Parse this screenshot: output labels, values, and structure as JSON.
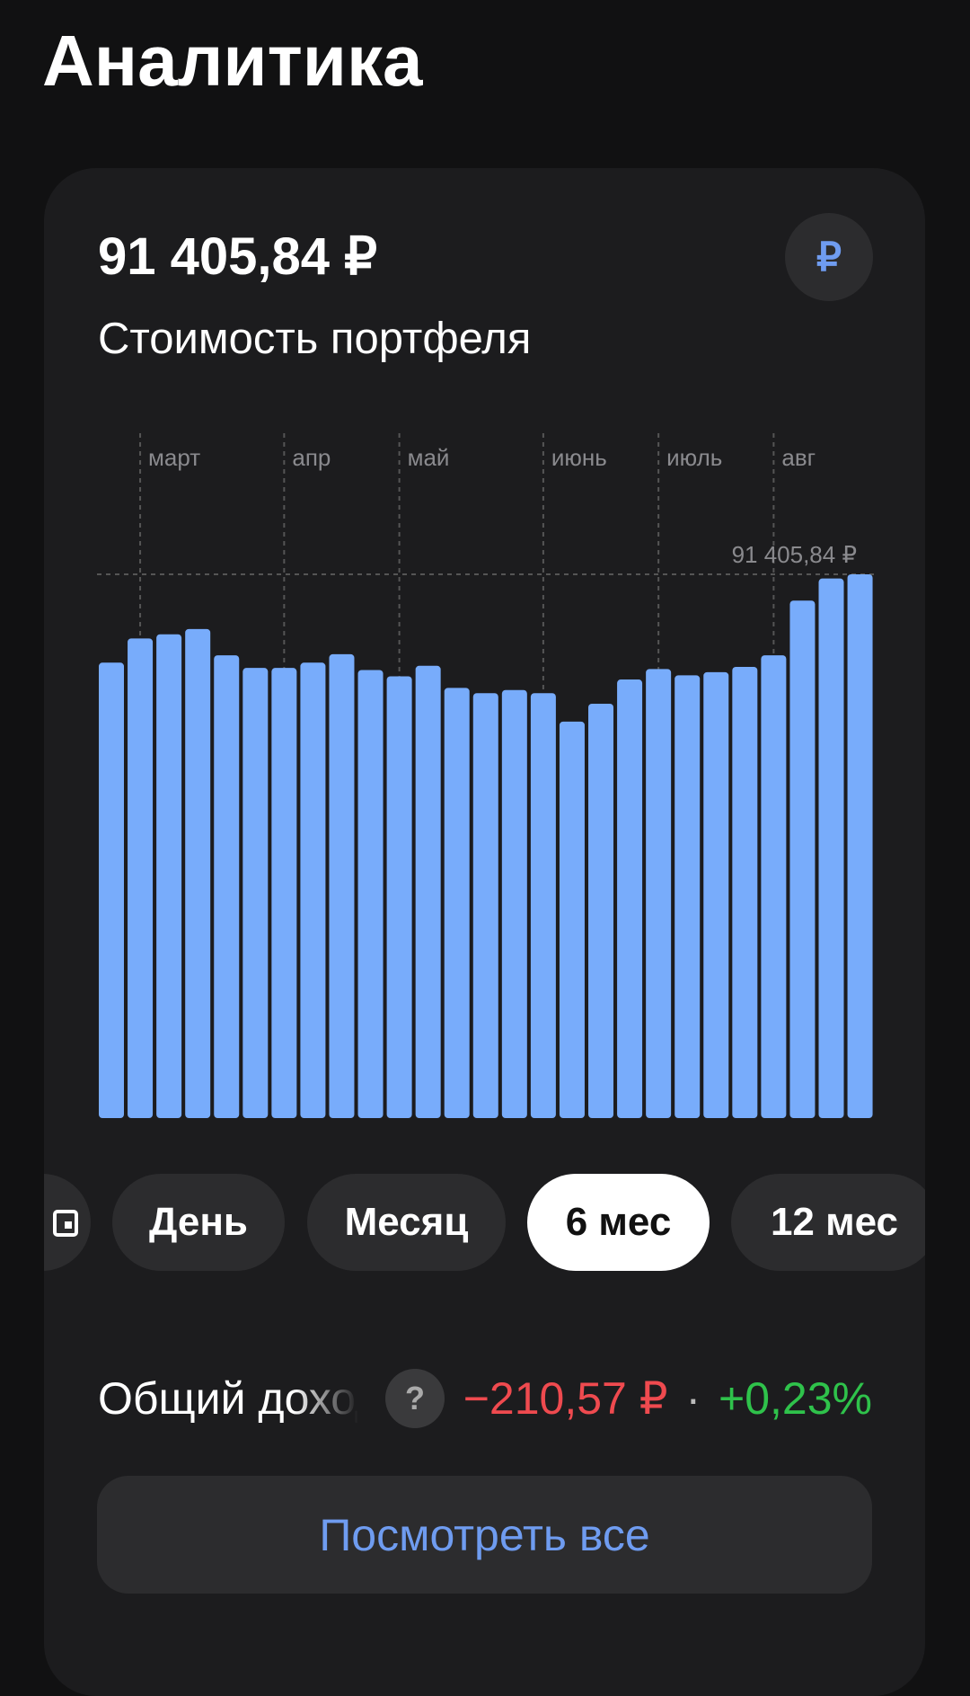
{
  "header": {
    "title": "Аналитика"
  },
  "card": {
    "amount": "91 405,84 ₽",
    "subtitle": "Стоимость портфеля",
    "currency_icon": "₽"
  },
  "chart_data": {
    "type": "bar",
    "color": "#78acfb",
    "categories": [
      null,
      "март",
      null,
      null,
      null,
      null,
      "апр",
      null,
      null,
      null,
      "май",
      null,
      null,
      null,
      null,
      "июнь",
      null,
      null,
      null,
      "июль",
      null,
      null,
      null,
      "авг",
      null,
      null,
      null
    ],
    "values": [
      76554,
      80621,
      81328,
      82212,
      77792,
      75670,
      75670,
      76554,
      77969,
      75317,
      74256,
      76024,
      72311,
      71427,
      71957,
      71427,
      66653,
      69659,
      73726,
      75493,
      74432,
      74963,
      75847,
      77792,
      86985,
      90698,
      91405.84
    ],
    "ylim": [
      0,
      91405.84
    ],
    "reference_line": {
      "value": 91405.84,
      "label": "91 405,84 ₽"
    }
  },
  "periods": {
    "items": [
      "День",
      "Месяц",
      "6 мес",
      "12 мес"
    ],
    "selected_index": 2
  },
  "income": {
    "label": "Общий доход",
    "help": "?",
    "amount": "−210,57 ₽",
    "separator": "·",
    "percent": "+0,23%"
  },
  "button": {
    "label": "Посмотреть все"
  }
}
